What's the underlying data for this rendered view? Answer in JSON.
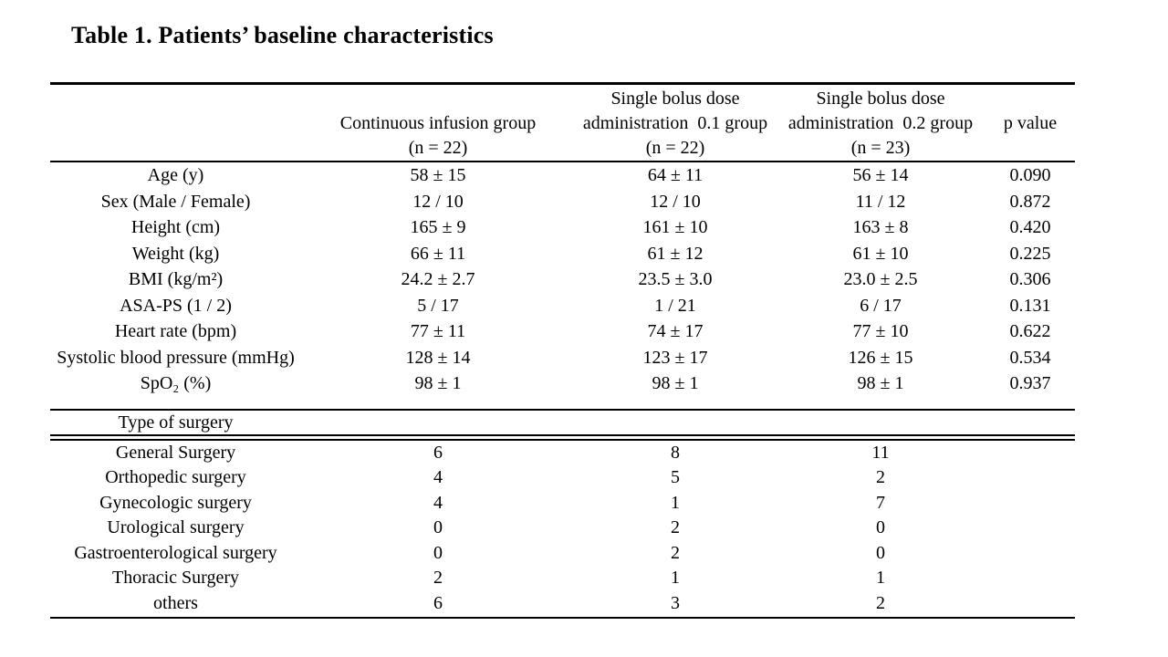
{
  "title": "Table 1. Patients’ baseline characteristics",
  "table": {
    "header": {
      "col1": [
        "",
        "",
        ""
      ],
      "col2": [
        "",
        "Continuous infusion group",
        "(n = 22)"
      ],
      "col3": [
        "Single bolus dose",
        "administration  0.1 group",
        "(n = 22)"
      ],
      "col4": [
        "Single bolus dose",
        "administration  0.2 group",
        "(n = 23)"
      ],
      "col5": [
        "",
        "p value",
        ""
      ]
    },
    "rows": [
      {
        "label": "Age (y)",
        "values": [
          "58 ± 15",
          "64 ± 11",
          "56 ± 14",
          "0.090"
        ]
      },
      {
        "label": "Sex (Male / Female)",
        "values": [
          "12 / 10",
          "12 / 10",
          "11 / 12",
          "0.872"
        ]
      },
      {
        "label": "Height (cm)",
        "values": [
          "165 ± 9",
          "161 ± 10",
          "163 ± 8",
          "0.420"
        ]
      },
      {
        "label": "Weight (kg)",
        "values": [
          "66 ± 11",
          "61 ± 12",
          "61 ± 10",
          "0.225"
        ]
      },
      {
        "label": "BMI (kg/m²)",
        "values": [
          "24.2 ± 2.7",
          "23.5 ± 3.0",
          "23.0 ± 2.5",
          "0.306"
        ]
      },
      {
        "label": "ASA-PS (1 / 2)",
        "values": [
          "5 / 17",
          "1 / 21",
          "6 / 17",
          "0.131"
        ]
      },
      {
        "label": "Heart rate (bpm)",
        "values": [
          "77 ± 11",
          "74 ± 17",
          "77 ± 10",
          "0.622"
        ]
      },
      {
        "label": "Systolic blood pressure (mmHg)",
        "values": [
          "128 ± 14",
          "123 ± 17",
          "126 ± 15",
          "0.534"
        ]
      },
      {
        "label": "SpO₂ (%)",
        "values": [
          "98 ± 1",
          "98 ± 1",
          "98 ± 1",
          "0.937"
        ]
      }
    ],
    "section_label": "Type of surgery",
    "surgery_rows": [
      {
        "label": "General Surgery",
        "values": [
          "6",
          "8",
          "11"
        ]
      },
      {
        "label": "Orthopedic surgery",
        "values": [
          "4",
          "5",
          "2"
        ]
      },
      {
        "label": "Gynecologic surgery",
        "values": [
          "4",
          "1",
          "7"
        ]
      },
      {
        "label": "Urological surgery",
        "values": [
          "0",
          "2",
          "0"
        ]
      },
      {
        "label": "Gastroenterological surgery",
        "values": [
          "0",
          "2",
          "0"
        ]
      },
      {
        "label": "Thoracic Surgery",
        "values": [
          "2",
          "1",
          "1"
        ]
      },
      {
        "label": "others",
        "values": [
          "6",
          "3",
          "2"
        ]
      }
    ]
  }
}
